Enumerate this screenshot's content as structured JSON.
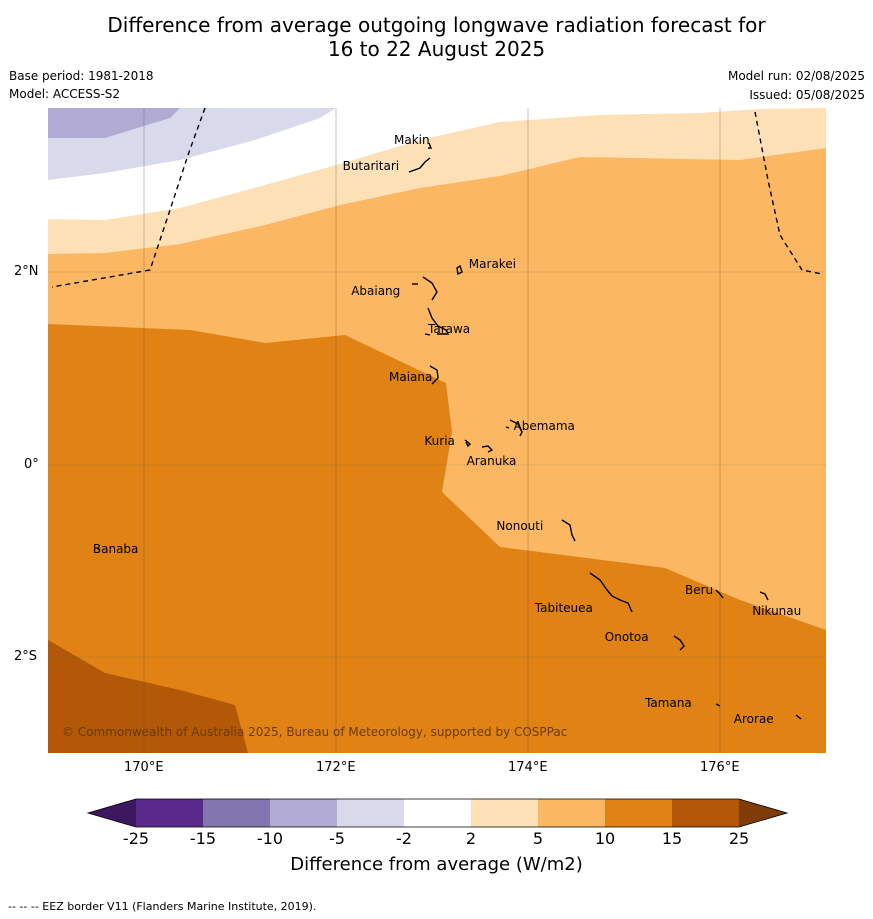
{
  "title_line1": "Difference from average outgoing longwave radiation forecast for",
  "title_line2": "16 to 22 August 2025",
  "base_period": "Base period: 1981-2018",
  "model": "Model: ACCESS-S2",
  "model_run": "Model run: 02/08/2025",
  "issued": "Issued: 05/08/2025",
  "copyright": "© Commonwealth of Australia 2025, Bureau of Meteorology, supported by COSPPac",
  "lat_labels": [
    "2°N",
    "0°",
    "2°S"
  ],
  "lon_labels": [
    "170°E",
    "172°E",
    "174°E",
    "176°E"
  ],
  "places": [
    {
      "name": "Makin",
      "lon": 173.0,
      "lat": 3.35
    },
    {
      "name": "Butaritari",
      "lon": 172.85,
      "lat": 3.1
    },
    {
      "name": "Marakei",
      "lon": 173.3,
      "lat": 2.0
    },
    {
      "name": "Abaiang",
      "lon": 172.95,
      "lat": 1.8
    },
    {
      "name": "Tarawa",
      "lon": 173.0,
      "lat": 1.4
    },
    {
      "name": "Maiana",
      "lon": 173.0,
      "lat": 0.9
    },
    {
      "name": "Abemama",
      "lon": 173.85,
      "lat": 0.4
    },
    {
      "name": "Kuria",
      "lon": 173.4,
      "lat": 0.22
    },
    {
      "name": "Aranuka",
      "lon": 173.6,
      "lat": 0.16
    },
    {
      "name": "Nonouti",
      "lon": 174.4,
      "lat": -0.65
    },
    {
      "name": "Banaba",
      "lon": 169.53,
      "lat": -0.86
    },
    {
      "name": "Tabiteuea",
      "lon": 174.8,
      "lat": -1.3
    },
    {
      "name": "Beru",
      "lon": 176.0,
      "lat": -1.33
    },
    {
      "name": "Nikunau",
      "lon": 176.45,
      "lat": -1.35
    },
    {
      "name": "Onotoa",
      "lon": 175.55,
      "lat": -1.8
    },
    {
      "name": "Tamana",
      "lon": 175.98,
      "lat": -2.5
    },
    {
      "name": "Arorae",
      "lon": 176.8,
      "lat": -2.65
    }
  ],
  "colorbar": {
    "ticks": [
      "-25",
      "-15",
      "-10",
      "-5",
      "-2",
      "2",
      "5",
      "10",
      "15",
      "25"
    ],
    "colors": [
      "#5a2a8a",
      "#8275b0",
      "#b1abd3",
      "#d9d9ec",
      "#ffffff",
      "#fee0b6",
      "#fbb761",
      "#e08214",
      "#b35806"
    ],
    "under_color": "#3d1860",
    "over_color": "#7f3b08",
    "title": "Difference from average (W/m2)"
  },
  "footer": "--  --  -- EEZ border V11 (Flanders Marine Institute, 2019)."
}
